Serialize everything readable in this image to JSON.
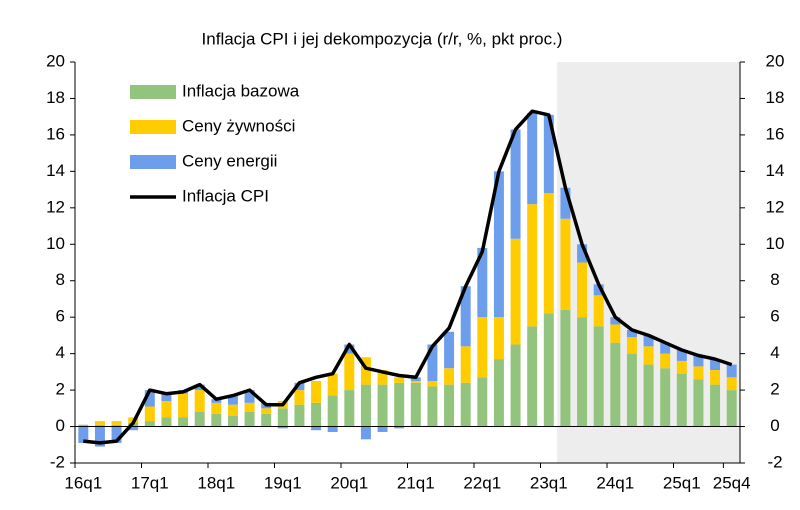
{
  "chart_data": {
    "type": "stacked-bar-line",
    "title": "Inflacja CPI i jej dekompozycja (r/r, %, pkt proc.)",
    "categories": [
      "16q1",
      null,
      null,
      null,
      "17q1",
      null,
      null,
      null,
      "18q1",
      null,
      null,
      null,
      "19q1",
      null,
      null,
      null,
      "20q1",
      null,
      null,
      null,
      "21q1",
      null,
      null,
      null,
      "22q1",
      null,
      null,
      null,
      "23q1",
      null,
      null,
      null,
      "24q1",
      null,
      null,
      null,
      "25q1",
      null,
      null,
      "25q4"
    ],
    "series": [
      {
        "name": "Inflacja bazowa",
        "type": "bar",
        "color": "#93c47d",
        "values": [
          0.1,
          0.1,
          0.1,
          0.2,
          0.3,
          0.5,
          0.5,
          0.8,
          0.7,
          0.6,
          0.8,
          0.7,
          1.0,
          1.2,
          1.3,
          1.7,
          2.0,
          2.3,
          2.3,
          2.4,
          2.4,
          2.2,
          2.3,
          2.4,
          2.7,
          3.7,
          4.5,
          5.5,
          6.2,
          6.4,
          6.0,
          5.5,
          4.6,
          4.0,
          3.4,
          3.2,
          2.9,
          2.6,
          2.3,
          2.0
        ]
      },
      {
        "name": "Ceny żywności",
        "type": "bar",
        "color": "#ffcc00",
        "values": [
          0.0,
          0.2,
          0.2,
          0.3,
          0.8,
          0.9,
          1.3,
          1.2,
          0.6,
          0.6,
          0.5,
          0.3,
          0.4,
          0.8,
          1.2,
          1.2,
          2.0,
          1.5,
          0.8,
          0.3,
          0.1,
          0.3,
          0.9,
          2.0,
          3.3,
          2.3,
          5.8,
          6.7,
          6.6,
          5.0,
          3.0,
          1.7,
          1.0,
          0.9,
          1.0,
          0.8,
          0.7,
          0.7,
          0.8,
          0.7
        ]
      },
      {
        "name": "Ceny energii",
        "type": "bar",
        "color": "#6d9eeb",
        "values": [
          -0.9,
          -1.1,
          -0.9,
          -0.2,
          0.9,
          0.4,
          0.2,
          0.3,
          0.2,
          0.5,
          0.7,
          0.3,
          -0.1,
          0.4,
          -0.2,
          -0.3,
          0.5,
          -0.7,
          -0.3,
          -0.1,
          0.2,
          2.0,
          2.0,
          3.3,
          3.8,
          8.0,
          6.0,
          5.0,
          4.3,
          1.7,
          1.0,
          0.6,
          0.4,
          0.4,
          0.6,
          0.6,
          0.6,
          0.6,
          0.6,
          0.7
        ]
      },
      {
        "name": "Inflacja CPI",
        "type": "line",
        "color": "#000000",
        "values": [
          -0.8,
          -0.9,
          -0.8,
          0.2,
          2.0,
          1.8,
          1.9,
          2.3,
          1.5,
          1.7,
          2.0,
          1.2,
          1.2,
          2.4,
          2.7,
          2.9,
          4.5,
          3.2,
          3.0,
          2.8,
          2.7,
          4.4,
          5.4,
          7.7,
          9.6,
          14.0,
          16.3,
          17.3,
          17.1,
          13.1,
          10.0,
          7.8,
          6.0,
          5.3,
          5.0,
          4.6,
          4.2,
          3.9,
          3.7,
          3.4
        ]
      }
    ],
    "ylim": [
      -2,
      20
    ],
    "yticks": [
      -2,
      0,
      2,
      4,
      6,
      8,
      10,
      12,
      14,
      16,
      18,
      20
    ],
    "y2lim": [
      -2,
      20
    ],
    "y2ticks": [
      -2,
      0,
      2,
      4,
      6,
      8,
      10,
      12,
      14,
      16,
      18,
      20
    ],
    "shaded_from": 29,
    "shade_color": "#ededed",
    "grid": false,
    "legend": "top-left"
  }
}
